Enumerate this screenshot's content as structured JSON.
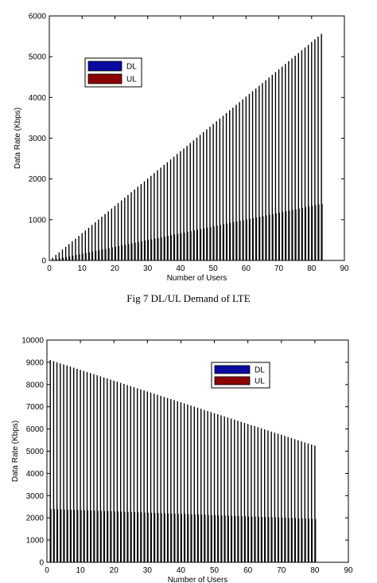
{
  "caption": "Fig 7 DL/UL Demand of LTE",
  "chart_data": [
    {
      "type": "bar",
      "title": "",
      "xlabel": "Number of Users",
      "ylabel": "Data Rate (Kbps)",
      "xlim": [
        0,
        90
      ],
      "ylim": [
        0,
        6000
      ],
      "xticks": [
        "0",
        "10",
        "20",
        "30",
        "40",
        "50",
        "60",
        "70",
        "80",
        "90"
      ],
      "yticks": [
        "0",
        "1000",
        "2000",
        "3000",
        "4000",
        "5000",
        "6000"
      ],
      "legend": {
        "placement": "upper-left",
        "entries": [
          "DL",
          "UL"
        ]
      },
      "colors": {
        "DL": "#0a0aa0",
        "UL": "#8b0000"
      },
      "series": [
        {
          "name": "DL",
          "x_start": 1,
          "x_end": 83,
          "value_start": 66,
          "value_end": 5560
        },
        {
          "name": "UL",
          "x_start": 1,
          "x_end": 83,
          "value_start": 17,
          "value_end": 1390
        }
      ]
    },
    {
      "type": "bar",
      "title": "",
      "xlabel": "Number of Users",
      "ylabel": "Data Rate (Kbps)",
      "xlim": [
        0,
        90
      ],
      "ylim": [
        0,
        10000
      ],
      "xticks": [
        "0",
        "10",
        "20",
        "30",
        "40",
        "50",
        "60",
        "70",
        "80",
        "90"
      ],
      "yticks": [
        "0",
        "1000",
        "2000",
        "3000",
        "4000",
        "5000",
        "6000",
        "7000",
        "8000",
        "9000",
        "10000"
      ],
      "legend": {
        "placement": "upper-center",
        "entries": [
          "DL",
          "UL"
        ]
      },
      "colors": {
        "DL": "#0a0aa0",
        "UL": "#8b0000"
      },
      "series": [
        {
          "name": "DL",
          "x_start": 1,
          "x_end": 80,
          "value_start": 9100,
          "value_end": 5250
        },
        {
          "name": "UL",
          "x_start": 1,
          "x_end": 80,
          "value_start": 2400,
          "value_end": 1950
        }
      ]
    }
  ]
}
